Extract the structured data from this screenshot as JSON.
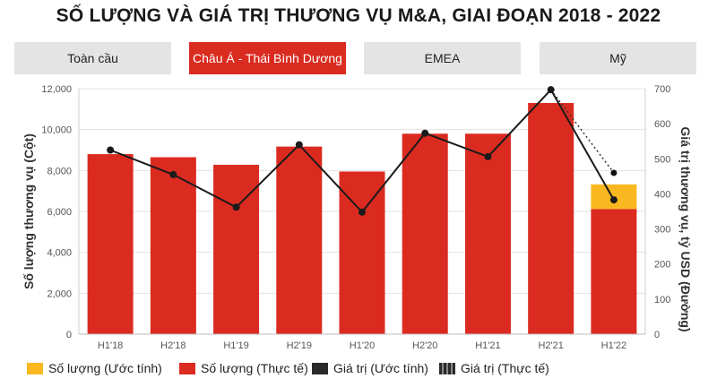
{
  "title": "SỐ LƯỢNG VÀ GIÁ TRỊ THƯƠNG VỤ M&A, GIAI ĐOẠN 2018 - 2022",
  "tabs": [
    {
      "label": "Toàn cầu",
      "active": false
    },
    {
      "label": "Châu Á - Thái Bình Dương",
      "active": true
    },
    {
      "label": "EMEA",
      "active": false
    },
    {
      "label": "Mỹ",
      "active": false
    }
  ],
  "colors": {
    "actual": "#db2b21",
    "estimated": "#f9b820",
    "line": "#1a1a1a",
    "tab_active": "#d92b20"
  },
  "chart_data": {
    "type": "bar",
    "categories": [
      "H1'18",
      "H2'18",
      "H1'19",
      "H2'19",
      "H1'20",
      "H2'20",
      "H1'21",
      "H2'21",
      "H1'22"
    ],
    "series": [
      {
        "name": "Số lượng (Thực tế)",
        "type": "bar",
        "axis": "left",
        "values": [
          8800,
          8650,
          8280,
          9170,
          7950,
          9800,
          9800,
          11300,
          6120
        ]
      },
      {
        "name": "Số lượng (Ước tính)",
        "type": "bar-stacked",
        "axis": "left",
        "values": [
          0,
          0,
          0,
          0,
          0,
          0,
          0,
          0,
          1200
        ]
      },
      {
        "name": "Giá trị (Ước tính)",
        "type": "line",
        "axis": "right",
        "values": [
          525,
          455,
          362,
          540,
          348,
          573,
          506,
          697,
          383
        ]
      },
      {
        "name": "Giá trị (Thực tế)",
        "type": "line-dotted",
        "axis": "right",
        "values": [
          null,
          null,
          null,
          null,
          null,
          null,
          null,
          697,
          460
        ]
      }
    ],
    "ylabel": "Số lượng thương vụ (Cột)",
    "y2label": "Giá trị thương vụ, tỷ USD (Đường)",
    "ylim": [
      0,
      12000
    ],
    "y2lim": [
      0,
      700
    ],
    "yticks": [
      "0",
      "2,000",
      "4,000",
      "6,000",
      "8,000",
      "10,000",
      "12,000"
    ],
    "y2ticks": [
      "0",
      "100",
      "200",
      "300",
      "400",
      "500",
      "600",
      "700"
    ],
    "grid": true,
    "legend": [
      {
        "label": "Số lượng (Ước tính)",
        "style": "estimated"
      },
      {
        "label": "Số lượng (Thực tế)",
        "style": "actual"
      },
      {
        "label": "Giá trị (Ước tính)",
        "style": "line-solid"
      },
      {
        "label": "Giá trị (Thực tế)",
        "style": "line-dotted"
      }
    ],
    "legend_position": "bottom"
  }
}
